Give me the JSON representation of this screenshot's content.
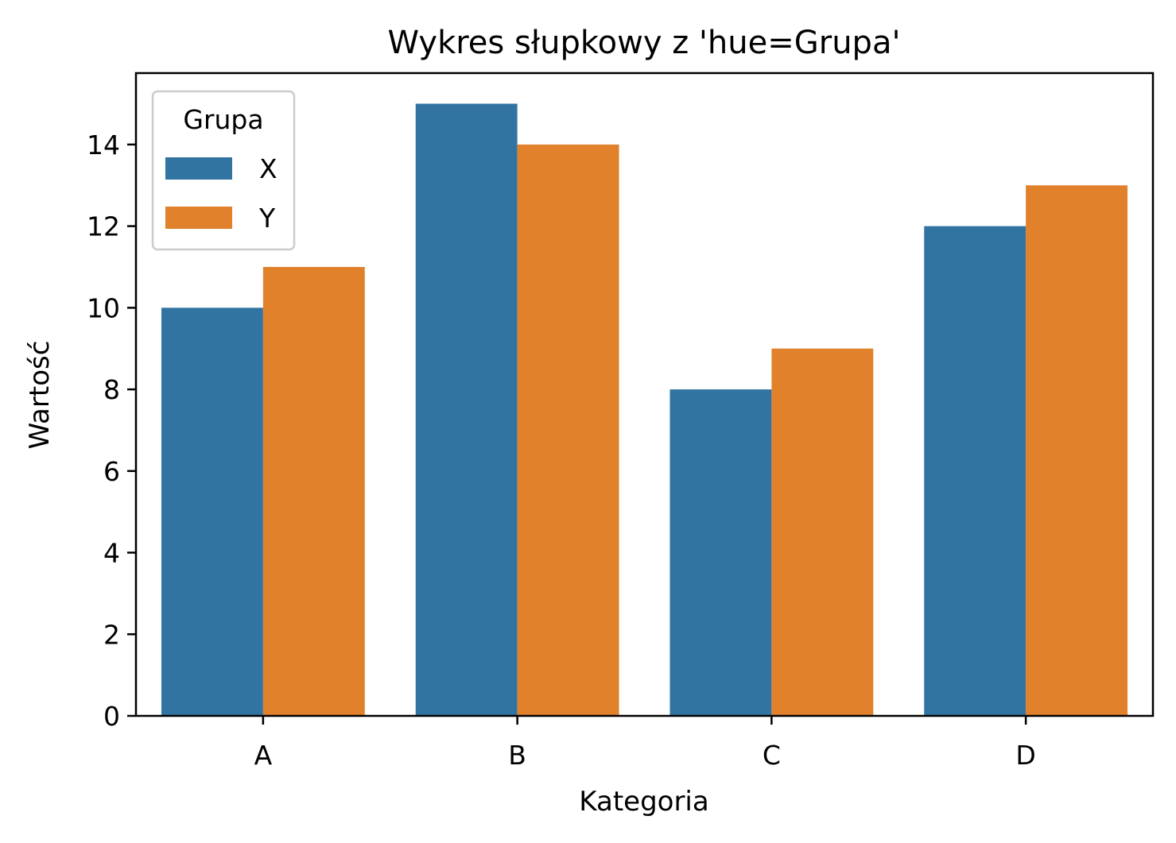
{
  "chart_data": {
    "type": "bar",
    "title": "Wykres słupkowy z 'hue=Grupa'",
    "xlabel": "Kategoria",
    "ylabel": "Wartość",
    "categories": [
      "A",
      "B",
      "C",
      "D"
    ],
    "series": [
      {
        "name": "X",
        "color": "#3274a1",
        "values": [
          10,
          15,
          8,
          12
        ]
      },
      {
        "name": "Y",
        "color": "#e1812c",
        "values": [
          11,
          14,
          9,
          13
        ]
      }
    ],
    "ylim": [
      0,
      15.75
    ],
    "yticks": [
      0,
      2,
      4,
      6,
      8,
      10,
      12,
      14
    ],
    "grid": false,
    "legend": {
      "title": "Grupa",
      "placement": "top-left"
    }
  }
}
